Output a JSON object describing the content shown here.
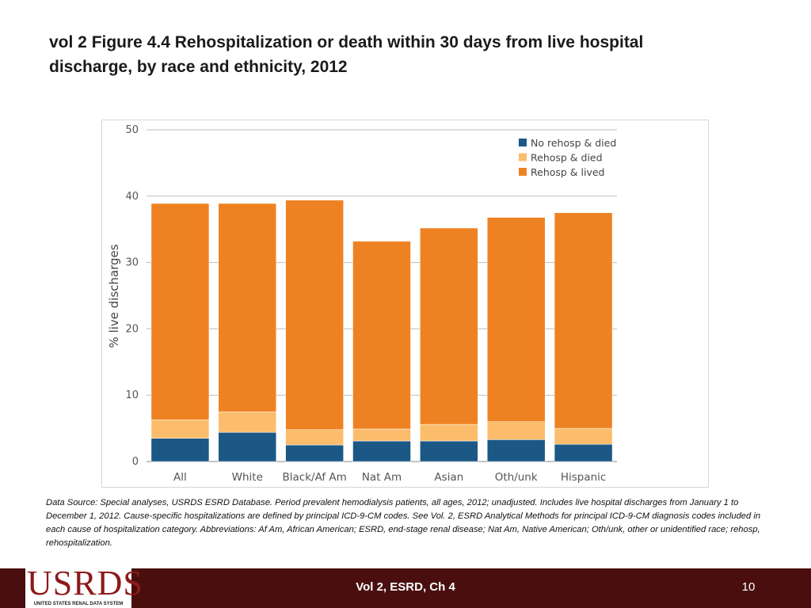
{
  "slide": {
    "title": "vol 2 Figure 4.4 Rehospitalization or death within 30 days from live hospital discharge, by race and ethnicity, 2012",
    "source": "Data Source: Special analyses, USRDS ESRD Database. Period prevalent hemodialysis patients, all ages, 2012; unadjusted. Includes live hospital discharges from January 1 to December 1, 2012. Cause-specific hospitalizations are defined by principal ICD-9-CM codes. See Vol. 2, ESRD Analytical Methods for principal ICD-9-CM diagnosis codes included in each cause of hospitalization category. Abbreviations: Af Am, African American; ESRD, end-stage renal disease; Nat Am, Native American; Oth/unk, other or unidentified race; rehosp, rehospitalization."
  },
  "footer": {
    "logo_text": "USRDS",
    "logo_subtext": "UNITED STATES RENAL DATA SYSTEM",
    "center": "Vol 2, ESRD, Ch 4",
    "page_number": "10",
    "color": "#4a0e0e"
  },
  "chart_data": {
    "type": "bar",
    "stacked": true,
    "categories": [
      "All",
      "White",
      "Black/Af Am",
      "Nat Am",
      "Asian",
      "Oth/unk",
      "Hispanic"
    ],
    "series": [
      {
        "name": "No rehosp & died",
        "color": "#1b5886",
        "values": [
          3.5,
          4.4,
          2.5,
          3.1,
          3.1,
          3.3,
          2.6
        ]
      },
      {
        "name": "Rehosp & died",
        "color": "#fbbd6b",
        "values": [
          2.8,
          3.1,
          2.3,
          1.8,
          2.5,
          2.7,
          2.4
        ]
      },
      {
        "name": "Rehosp & lived",
        "color": "#ee8223",
        "values": [
          32.6,
          31.4,
          34.6,
          28.3,
          29.6,
          30.8,
          32.5
        ]
      }
    ],
    "ylabel": "% live discharges",
    "xlabel": "",
    "ylim": [
      0,
      50
    ],
    "yticks": [
      0,
      10,
      20,
      30,
      40,
      50
    ],
    "grid": true,
    "legend_position": "top-right"
  }
}
